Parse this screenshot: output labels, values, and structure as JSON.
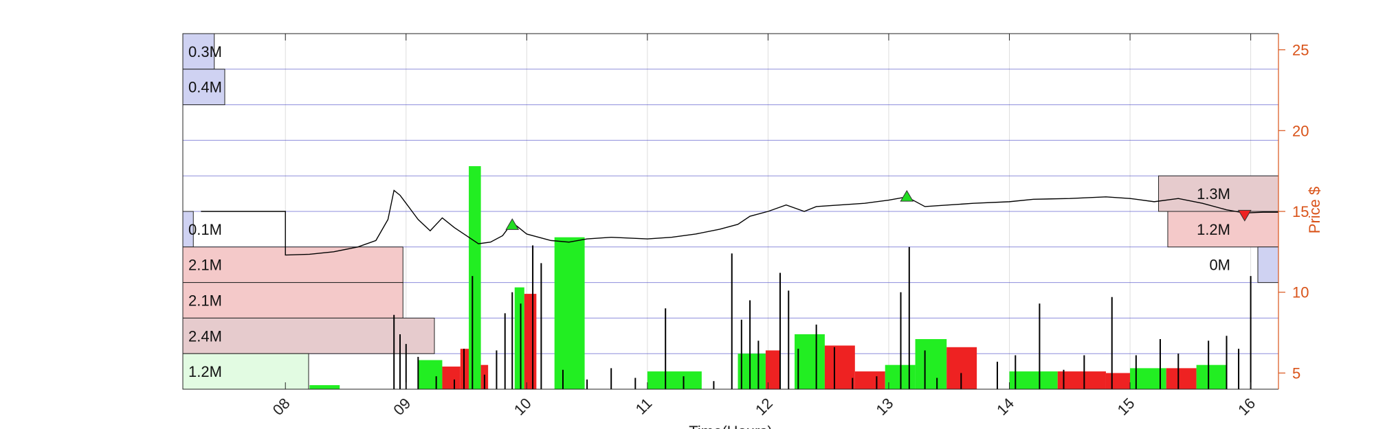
{
  "chart_data": {
    "type": "line",
    "xlabel": "Time(Hours)",
    "ylabel": "Price $",
    "xlim": [
      7.15,
      16.23
    ],
    "ylim": [
      4,
      26
    ],
    "x_ticks": [
      8,
      9,
      10,
      11,
      12,
      13,
      14,
      15,
      16
    ],
    "x_tick_labels": [
      "08",
      "09",
      "10",
      "11",
      "12",
      "13",
      "14",
      "15",
      "16"
    ],
    "y_ticks": [
      5,
      10,
      15,
      20,
      25
    ],
    "y_tick_labels": [
      "5",
      "10",
      "15",
      "20",
      "25"
    ],
    "grid": true,
    "colors": {
      "axis_right": "#d95319",
      "profile_grid": "#3030c0",
      "up_volume": "#22ee22",
      "down_volume": "#ee2222",
      "line": "#000000"
    },
    "price_series": {
      "name": "Price",
      "points": [
        [
          7.3,
          15.0
        ],
        [
          8.0,
          15.0
        ],
        [
          8.0,
          12.3
        ],
        [
          8.2,
          12.35
        ],
        [
          8.4,
          12.5
        ],
        [
          8.6,
          12.8
        ],
        [
          8.75,
          13.2
        ],
        [
          8.85,
          14.5
        ],
        [
          8.9,
          16.3
        ],
        [
          8.95,
          16.0
        ],
        [
          9.0,
          15.5
        ],
        [
          9.05,
          15.0
        ],
        [
          9.1,
          14.5
        ],
        [
          9.2,
          13.8
        ],
        [
          9.3,
          14.6
        ],
        [
          9.4,
          14.0
        ],
        [
          9.5,
          13.5
        ],
        [
          9.6,
          13.0
        ],
        [
          9.7,
          13.1
        ],
        [
          9.8,
          13.5
        ],
        [
          9.85,
          14.0
        ],
        [
          9.9,
          14.2
        ],
        [
          10.0,
          13.6
        ],
        [
          10.1,
          13.4
        ],
        [
          10.2,
          13.2
        ],
        [
          10.35,
          13.1
        ],
        [
          10.5,
          13.3
        ],
        [
          10.7,
          13.4
        ],
        [
          11.0,
          13.3
        ],
        [
          11.2,
          13.4
        ],
        [
          11.4,
          13.6
        ],
        [
          11.6,
          13.9
        ],
        [
          11.75,
          14.2
        ],
        [
          11.85,
          14.7
        ],
        [
          12.0,
          15.0
        ],
        [
          12.15,
          15.4
        ],
        [
          12.3,
          15.0
        ],
        [
          12.4,
          15.3
        ],
        [
          12.6,
          15.4
        ],
        [
          12.8,
          15.5
        ],
        [
          13.0,
          15.7
        ],
        [
          13.15,
          15.9
        ],
        [
          13.3,
          15.3
        ],
        [
          13.5,
          15.4
        ],
        [
          13.7,
          15.5
        ],
        [
          14.0,
          15.6
        ],
        [
          14.2,
          15.75
        ],
        [
          14.5,
          15.8
        ],
        [
          14.8,
          15.9
        ],
        [
          15.0,
          15.8
        ],
        [
          15.2,
          15.6
        ],
        [
          15.4,
          15.8
        ],
        [
          15.6,
          15.5
        ],
        [
          15.8,
          15.1
        ],
        [
          15.95,
          14.9
        ],
        [
          16.1,
          14.95
        ],
        [
          16.23,
          14.95
        ]
      ]
    },
    "volume_bars": [
      {
        "x0": 8.2,
        "x1": 8.45,
        "top": 4.25,
        "dir": "up"
      },
      {
        "x0": 9.1,
        "x1": 9.3,
        "top": 5.8,
        "dir": "up"
      },
      {
        "x0": 9.3,
        "x1": 9.45,
        "top": 5.4,
        "dir": "down"
      },
      {
        "x0": 9.45,
        "x1": 9.52,
        "top": 6.5,
        "dir": "down"
      },
      {
        "x0": 9.52,
        "x1": 9.62,
        "top": 17.8,
        "dir": "up"
      },
      {
        "x0": 9.62,
        "x1": 9.68,
        "top": 5.5,
        "dir": "down"
      },
      {
        "x0": 9.9,
        "x1": 9.98,
        "top": 10.3,
        "dir": "up"
      },
      {
        "x0": 9.98,
        "x1": 10.08,
        "top": 9.9,
        "dir": "down"
      },
      {
        "x0": 10.23,
        "x1": 10.48,
        "top": 13.4,
        "dir": "up"
      },
      {
        "x0": 11.0,
        "x1": 11.45,
        "top": 5.1,
        "dir": "up"
      },
      {
        "x0": 11.75,
        "x1": 11.98,
        "top": 6.2,
        "dir": "up"
      },
      {
        "x0": 11.98,
        "x1": 12.1,
        "top": 6.4,
        "dir": "down"
      },
      {
        "x0": 12.22,
        "x1": 12.47,
        "top": 7.4,
        "dir": "up"
      },
      {
        "x0": 12.47,
        "x1": 12.72,
        "top": 6.7,
        "dir": "down"
      },
      {
        "x0": 12.72,
        "x1": 12.97,
        "top": 5.1,
        "dir": "down"
      },
      {
        "x0": 12.97,
        "x1": 13.22,
        "top": 5.5,
        "dir": "up"
      },
      {
        "x0": 13.22,
        "x1": 13.48,
        "top": 7.1,
        "dir": "up"
      },
      {
        "x0": 13.48,
        "x1": 13.73,
        "top": 6.6,
        "dir": "down"
      },
      {
        "x0": 14.0,
        "x1": 14.4,
        "top": 5.1,
        "dir": "up"
      },
      {
        "x0": 14.4,
        "x1": 14.8,
        "top": 5.1,
        "dir": "down"
      },
      {
        "x0": 14.8,
        "x1": 15.25,
        "top": 5.0,
        "dir": "down"
      },
      {
        "x0": 15.0,
        "x1": 15.3,
        "top": 5.3,
        "dir": "up"
      },
      {
        "x0": 15.3,
        "x1": 15.55,
        "top": 5.3,
        "dir": "down"
      },
      {
        "x0": 15.55,
        "x1": 15.8,
        "top": 5.5,
        "dir": "up"
      }
    ],
    "volume_spikes": [
      [
        8.9,
        8.6
      ],
      [
        8.95,
        7.4
      ],
      [
        9.0,
        6.8
      ],
      [
        9.1,
        6.0
      ],
      [
        9.25,
        4.8
      ],
      [
        9.4,
        4.6
      ],
      [
        9.48,
        6.5
      ],
      [
        9.55,
        11.0
      ],
      [
        9.65,
        4.9
      ],
      [
        9.75,
        6.4
      ],
      [
        9.82,
        8.7
      ],
      [
        9.88,
        10.0
      ],
      [
        9.95,
        9.3
      ],
      [
        10.05,
        12.9
      ],
      [
        10.12,
        11.8
      ],
      [
        10.3,
        5.2
      ],
      [
        10.5,
        4.6
      ],
      [
        10.7,
        5.3
      ],
      [
        10.9,
        4.7
      ],
      [
        11.15,
        9.0
      ],
      [
        11.3,
        4.8
      ],
      [
        11.55,
        4.5
      ],
      [
        11.7,
        12.4
      ],
      [
        11.78,
        8.3
      ],
      [
        11.85,
        9.5
      ],
      [
        11.92,
        7.0
      ],
      [
        12.1,
        11.2
      ],
      [
        12.17,
        10.1
      ],
      [
        12.25,
        6.5
      ],
      [
        12.4,
        8.0
      ],
      [
        12.55,
        6.6
      ],
      [
        12.7,
        4.7
      ],
      [
        12.9,
        4.8
      ],
      [
        13.1,
        10.0
      ],
      [
        13.17,
        12.8
      ],
      [
        13.3,
        6.4
      ],
      [
        13.4,
        4.7
      ],
      [
        13.6,
        5.0
      ],
      [
        13.9,
        5.7
      ],
      [
        14.05,
        6.1
      ],
      [
        14.25,
        9.3
      ],
      [
        14.45,
        5.2
      ],
      [
        14.62,
        6.1
      ],
      [
        14.85,
        9.7
      ],
      [
        15.05,
        6.1
      ],
      [
        15.25,
        7.1
      ],
      [
        15.4,
        6.2
      ],
      [
        15.65,
        7.0
      ],
      [
        15.8,
        7.3
      ],
      [
        15.9,
        6.5
      ],
      [
        16.0,
        11.0
      ]
    ],
    "markers": [
      {
        "x": 9.88,
        "y": 14.15,
        "dir": "up"
      },
      {
        "x": 13.15,
        "y": 15.9,
        "dir": "up"
      },
      {
        "x": 15.95,
        "y": 14.8,
        "dir": "down"
      }
    ],
    "volume_profile": [
      {
        "label": "0.3M",
        "value": 0.3,
        "side": "left",
        "color": "blue"
      },
      {
        "label": "0.4M",
        "value": 0.4,
        "side": "left",
        "color": "blue"
      },
      {
        "label": "",
        "value": 0.0,
        "side": "left",
        "color": "none"
      },
      {
        "label": "",
        "value": 0.0,
        "side": "left",
        "color": "none"
      },
      {
        "label": "",
        "value": 0.0,
        "side": "left",
        "color": "none"
      },
      {
        "label": "0.1M",
        "value": 0.1,
        "side": "left",
        "color": "blue"
      },
      {
        "label": "2.1M",
        "value": 2.1,
        "side": "left",
        "color": "red"
      },
      {
        "label": "2.1M",
        "value": 2.1,
        "side": "left",
        "color": "red"
      },
      {
        "label": "2.4M",
        "value": 2.4,
        "side": "left",
        "color": "mauve"
      },
      {
        "label": "1.2M",
        "value": 1.2,
        "side": "left",
        "color": "green"
      },
      {
        "label": "1.3M",
        "value": 1.3,
        "side": "right",
        "color": "mauve",
        "level": 4
      },
      {
        "label": "1.2M",
        "value": 1.2,
        "side": "right",
        "color": "red",
        "level": 5
      },
      {
        "label": "0M",
        "value": 0.0,
        "side": "right",
        "color": "blue",
        "level": 6
      }
    ]
  }
}
